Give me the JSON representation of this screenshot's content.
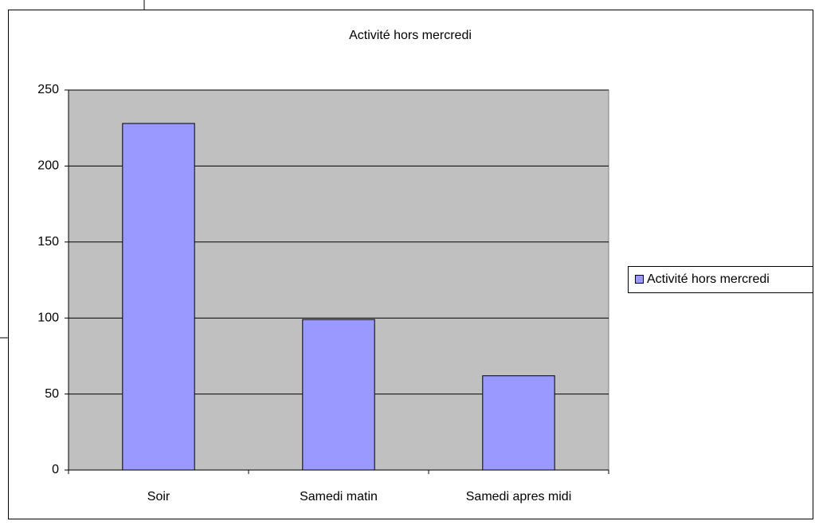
{
  "chart_data": {
    "type": "bar",
    "title": "Activité hors mercredi",
    "categories": [
      "Soir",
      "Samedi matin",
      "Samedi apres midi"
    ],
    "series": [
      {
        "name": "Activité hors mercredi",
        "color": "#9999ff",
        "values": [
          228,
          99,
          62
        ]
      }
    ],
    "ylim": [
      0,
      250
    ],
    "yticks": [
      0,
      50,
      100,
      150,
      200,
      250
    ],
    "grid": true,
    "legend": "right"
  }
}
